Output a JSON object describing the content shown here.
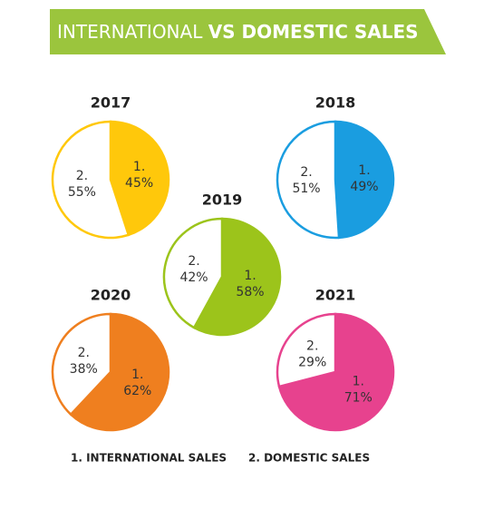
{
  "title": [
    "INTERNATIONAL",
    "VS DOMESTIC SALES"
  ],
  "legend": [
    "1. INTERNATIONAL SALES",
    "2. DOMESTIC SALES"
  ],
  "chart_data": [
    {
      "type": "pie",
      "title": "2017",
      "labels": [
        "1.",
        "2."
      ],
      "values": [
        45,
        55
      ],
      "value_labels": [
        "45%",
        "55%"
      ],
      "colors": [
        "#ffc80b",
        "#ffffff"
      ]
    },
    {
      "type": "pie",
      "title": "2018",
      "labels": [
        "1.",
        "2."
      ],
      "values": [
        49,
        51
      ],
      "value_labels": [
        "49%",
        "51%"
      ],
      "colors": [
        "#1a9de0",
        "#ffffff"
      ]
    },
    {
      "type": "pie",
      "title": "2019",
      "labels": [
        "1.",
        "2."
      ],
      "values": [
        58,
        42
      ],
      "value_labels": [
        "58%",
        "42%"
      ],
      "colors": [
        "#9cc41b",
        "#ffffff"
      ]
    },
    {
      "type": "pie",
      "title": "2020",
      "labels": [
        "1.",
        "2."
      ],
      "values": [
        62,
        38
      ],
      "value_labels": [
        "62%",
        "38%"
      ],
      "colors": [
        "#ef7f1f",
        "#ffffff"
      ]
    },
    {
      "type": "pie",
      "title": "2021",
      "labels": [
        "1.",
        "2."
      ],
      "values": [
        71,
        29
      ],
      "value_labels": [
        "71%",
        "29%"
      ],
      "colors": [
        "#e7428e",
        "#ffffff"
      ]
    }
  ]
}
